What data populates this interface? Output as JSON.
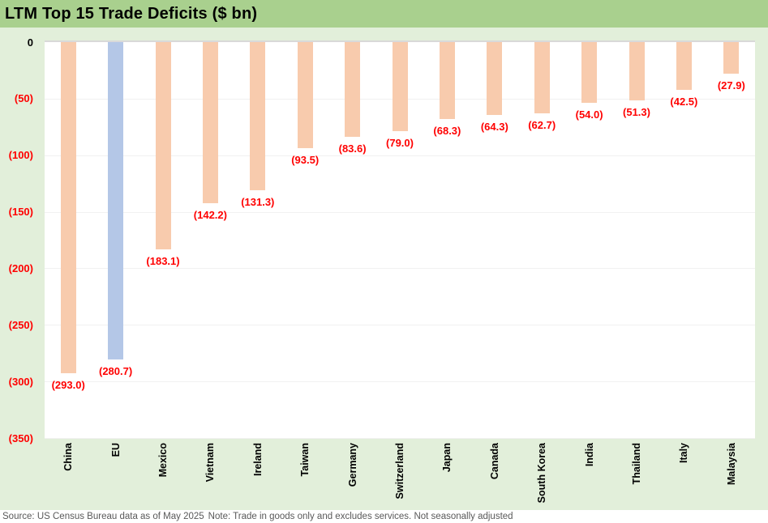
{
  "title": "LTM Top 15 Trade Deficits ($ bn)",
  "footer": {
    "source": "Source: US Census Bureau data as of May 2025",
    "note": "Note: Trade in goods only and excludes services. Not seasonally adjusted"
  },
  "colors": {
    "title_band": "#A9D08E",
    "background": "#E2EFDA",
    "plot": "#FFFFFF",
    "bar": "#F8CBAD",
    "bar_highlight": "#B4C7E7",
    "label": "#FF0000",
    "zero_tick": "#000000",
    "axis_line": "#D9D9D9",
    "gridline": "#F1F1F1",
    "footer_text": "#595959"
  },
  "chart_data": {
    "type": "bar",
    "title": "LTM Top 15 Trade Deficits ($ bn)",
    "orientation": "vertical-negative",
    "grid": true,
    "legend": false,
    "ylabel": "",
    "xlabel": "",
    "ylim": [
      -350,
      0
    ],
    "y_ticks": [
      {
        "label": "0",
        "value": 0
      },
      {
        "label": "(50)",
        "value": 50
      },
      {
        "label": "(100)",
        "value": 100
      },
      {
        "label": "(150)",
        "value": 150
      },
      {
        "label": "(200)",
        "value": 200
      },
      {
        "label": "(250)",
        "value": 250
      },
      {
        "label": "(300)",
        "value": 300
      },
      {
        "label": "(350)",
        "value": 350
      }
    ],
    "series": [
      {
        "name": "China",
        "value": -293.0,
        "label": "(293.0)",
        "highlighted": false
      },
      {
        "name": "EU",
        "value": -280.7,
        "label": "(280.7)",
        "highlighted": true
      },
      {
        "name": "Mexico",
        "value": -183.1,
        "label": "(183.1)",
        "highlighted": false
      },
      {
        "name": "Vietnam",
        "value": -142.2,
        "label": "(142.2)",
        "highlighted": false
      },
      {
        "name": "Ireland",
        "value": -131.3,
        "label": "(131.3)",
        "highlighted": false
      },
      {
        "name": "Taiwan",
        "value": -93.5,
        "label": "(93.5)",
        "highlighted": false
      },
      {
        "name": "Germany",
        "value": -83.6,
        "label": "(83.6)",
        "highlighted": false
      },
      {
        "name": "Switzerland",
        "value": -79.0,
        "label": "(79.0)",
        "highlighted": false
      },
      {
        "name": "Japan",
        "value": -68.3,
        "label": "(68.3)",
        "highlighted": false
      },
      {
        "name": "Canada",
        "value": -64.3,
        "label": "(64.3)",
        "highlighted": false
      },
      {
        "name": "South Korea",
        "value": -62.7,
        "label": "(62.7)",
        "highlighted": false
      },
      {
        "name": "India",
        "value": -54.0,
        "label": "(54.0)",
        "highlighted": false
      },
      {
        "name": "Thailand",
        "value": -51.3,
        "label": "(51.3)",
        "highlighted": false
      },
      {
        "name": "Italy",
        "value": -42.5,
        "label": "(42.5)",
        "highlighted": false
      },
      {
        "name": "Malaysia",
        "value": -27.9,
        "label": "(27.9)",
        "highlighted": false
      }
    ]
  }
}
